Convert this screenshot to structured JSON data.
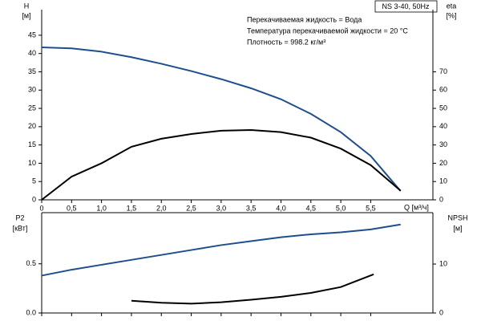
{
  "chart_data": [
    {
      "type": "line",
      "title": "NS 3-40, 50Hz",
      "annotations": [
        "Перекачиваемая жидкость = Вода",
        "Температура перекачиваемой жидкости = 20 °C",
        "Плотность = 998.2 кг/м³"
      ],
      "xlabel": "Q [м³/ч]",
      "ylabel": "H",
      "yunit": "[м]",
      "y2label": "eta",
      "y2unit": "[%]",
      "xlim": [
        0,
        6.54
      ],
      "xticks": [
        0,
        {
          "value": 0.5,
          "label": "0,5"
        },
        {
          "value": 1.0,
          "label": "1,0"
        },
        {
          "value": 1.5,
          "label": "1,5"
        },
        {
          "value": 2.0,
          "label": "2,0"
        },
        {
          "value": 2.5,
          "label": "2,5"
        },
        {
          "value": 3.0,
          "label": "3,0"
        },
        {
          "value": 3.5,
          "label": "3,5"
        },
        {
          "value": 4.0,
          "label": "4,0"
        },
        {
          "value": 4.5,
          "label": "4,5"
        },
        {
          "value": 5.0,
          "label": "5,0"
        },
        {
          "value": 5.5,
          "label": "5,5"
        }
      ],
      "ylim": [
        0,
        52
      ],
      "yticks": [
        0,
        5,
        10,
        15,
        20,
        25,
        30,
        35,
        40,
        45
      ],
      "y2lim": [
        0,
        104
      ],
      "y2ticks": [
        0,
        10,
        20,
        30,
        40,
        50,
        60,
        70
      ],
      "series": [
        {
          "color": "#1f4e8c",
          "axis": "y",
          "x": [
            0,
            0.5,
            1.0,
            1.5,
            2.0,
            2.5,
            3.0,
            3.5,
            4.0,
            4.5,
            5.0,
            5.5,
            6.0
          ],
          "values": [
            41.7,
            41.4,
            40.5,
            39,
            37.2,
            35.2,
            33,
            30.5,
            27.5,
            23.5,
            18.5,
            12,
            2.4
          ]
        },
        {
          "color": "#000000",
          "axis": "y2",
          "x": [
            0,
            0.5,
            1.0,
            1.5,
            2.0,
            2.5,
            3.0,
            3.5,
            4.0,
            4.5,
            5.0,
            5.5,
            6.0
          ],
          "values": [
            0,
            12.7,
            20,
            29,
            33.4,
            36,
            37.8,
            38.2,
            37,
            34,
            28,
            19,
            5
          ]
        }
      ]
    },
    {
      "type": "line",
      "ylabel": "P2",
      "yunit": "[кВт]",
      "y2label": "NPSH",
      "y2unit": "[м]",
      "xlim": [
        0,
        6.54
      ],
      "ylim": [
        0,
        1.02
      ],
      "yticks": [
        {
          "value": 0,
          "label": "0.0"
        },
        0.5
      ],
      "y2lim": [
        0,
        20.5
      ],
      "y2ticks": [
        0,
        10
      ],
      "series": [
        {
          "color": "#1f4e8c",
          "axis": "y",
          "x": [
            0,
            0.5,
            1.0,
            1.5,
            2.0,
            2.5,
            3.0,
            3.5,
            4.0,
            4.5,
            5.0,
            5.5,
            6.0
          ],
          "values": [
            0.38,
            0.44,
            0.49,
            0.54,
            0.59,
            0.64,
            0.69,
            0.73,
            0.77,
            0.8,
            0.82,
            0.85,
            0.9
          ]
        },
        {
          "color": "#000000",
          "axis": "y2",
          "x": [
            1.5,
            2.0,
            2.5,
            3.0,
            3.5,
            4.0,
            4.5,
            5.0,
            5.55
          ],
          "values": [
            2.5,
            2.1,
            1.9,
            2.2,
            2.7,
            3.3,
            4.1,
            5.3,
            7.9
          ]
        }
      ]
    }
  ]
}
